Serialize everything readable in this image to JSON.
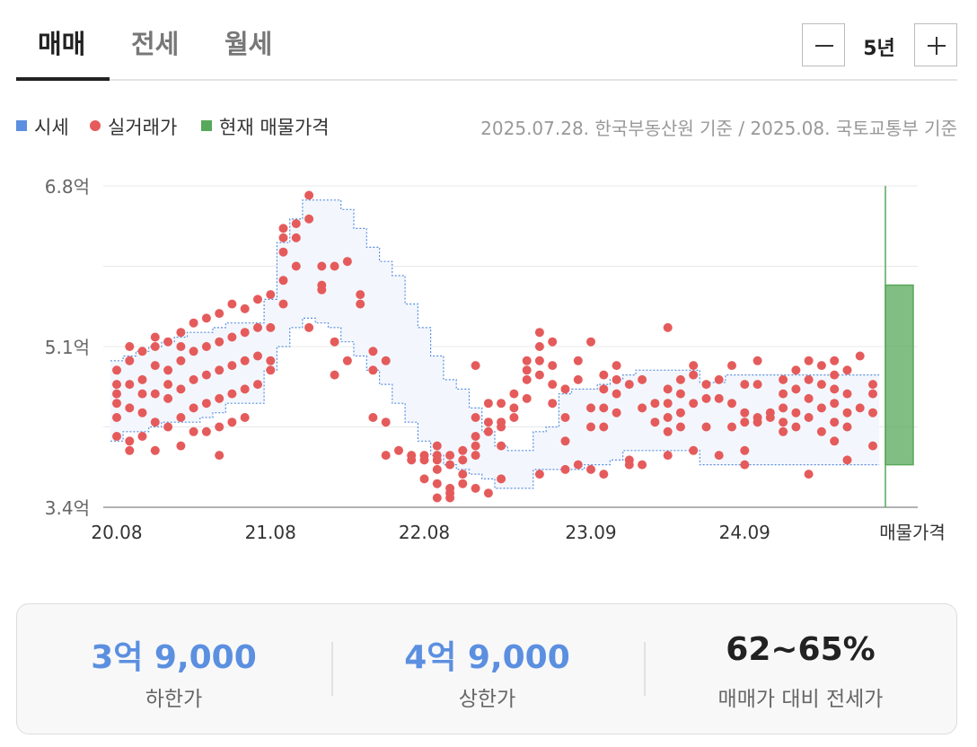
{
  "tabs": [
    {
      "label": "매매",
      "active": true
    },
    {
      "label": "전세",
      "active": false
    },
    {
      "label": "월세",
      "active": false
    }
  ],
  "period": {
    "label": "5년",
    "minus_icon": "minus-icon",
    "plus_icon": "plus-icon"
  },
  "legend": [
    {
      "label": "시세",
      "color": "#5b8fe0",
      "shape": "square"
    },
    {
      "label": "실거래가",
      "color": "#e55b5b",
      "shape": "circle"
    },
    {
      "label": "현재 매물가격",
      "color": "#57a85a",
      "shape": "square"
    }
  ],
  "source": "2025.07.28. 한국부동산원 기준 / 2025.08. 국토교통부 기준",
  "chart_data": {
    "type": "scatter",
    "y_unit": "억",
    "ylim": [
      3.4,
      6.8
    ],
    "y_ticks": [
      {
        "value": 3.4,
        "label": "3.4억"
      },
      {
        "value": 5.1,
        "label": "5.1억"
      },
      {
        "value": 6.8,
        "label": "6.8억"
      }
    ],
    "x_tick_labels": [
      "20.08",
      "21.08",
      "22.08",
      "23.09",
      "24.09",
      "매물가격"
    ],
    "grid": true,
    "band": {
      "name": "시세",
      "color": "#5b8fe0",
      "fill": "#f3f7fd",
      "x": [
        "20.08",
        "20.09",
        "20.10",
        "20.11",
        "20.12",
        "21.01",
        "21.02",
        "21.03",
        "21.04",
        "21.05",
        "21.06",
        "21.07",
        "21.08",
        "21.09",
        "21.10",
        "21.11",
        "21.12",
        "22.01",
        "22.02",
        "22.03",
        "22.04",
        "22.05",
        "22.06",
        "22.07",
        "22.08",
        "22.09",
        "22.10",
        "22.11",
        "22.12",
        "23.01",
        "23.02",
        "23.03",
        "23.04",
        "23.05",
        "23.06",
        "23.07",
        "23.08",
        "23.09",
        "23.10",
        "23.11",
        "23.12",
        "24.01",
        "24.02",
        "24.03",
        "24.04",
        "24.05",
        "24.06",
        "24.07",
        "24.08",
        "24.09",
        "24.10",
        "24.11",
        "24.12",
        "25.01",
        "25.02",
        "25.03",
        "25.04",
        "25.05",
        "25.06",
        "25.07"
      ],
      "upper": [
        4.95,
        5.0,
        5.05,
        5.1,
        5.15,
        5.2,
        5.25,
        5.25,
        5.3,
        5.35,
        5.35,
        5.35,
        5.6,
        6.2,
        6.45,
        6.65,
        6.65,
        6.65,
        6.55,
        6.35,
        6.15,
        6.0,
        5.85,
        5.55,
        5.3,
        5.0,
        4.75,
        4.65,
        4.45,
        4.2,
        4.05,
        4.0,
        4.0,
        4.2,
        4.25,
        4.6,
        4.65,
        4.65,
        4.7,
        4.75,
        4.8,
        4.85,
        4.85,
        4.85,
        4.85,
        4.85,
        4.72,
        4.72,
        4.8,
        4.8,
        4.8,
        4.8,
        4.8,
        4.8,
        4.8,
        4.8,
        4.8,
        4.8,
        4.8,
        4.8
      ],
      "lower": [
        4.1,
        4.2,
        4.2,
        4.25,
        4.3,
        4.3,
        4.3,
        4.35,
        4.4,
        4.5,
        4.5,
        4.5,
        4.85,
        5.1,
        5.3,
        5.4,
        5.35,
        5.3,
        5.15,
        5.0,
        4.85,
        4.7,
        4.5,
        4.3,
        4.1,
        3.95,
        3.85,
        3.8,
        3.75,
        3.7,
        3.6,
        3.6,
        3.6,
        3.8,
        3.8,
        3.8,
        3.8,
        3.85,
        3.85,
        3.9,
        4.0,
        4.0,
        4.0,
        4.0,
        4.0,
        4.0,
        3.85,
        3.85,
        3.85,
        3.85,
        3.85,
        3.85,
        3.85,
        3.85,
        3.85,
        3.85,
        3.85,
        3.85,
        3.85,
        3.85
      ]
    },
    "current_listing": {
      "name": "현재 매물가격",
      "color": "#57a85a",
      "low": 3.85,
      "high": 5.75
    },
    "series": [
      {
        "name": "실거래가",
        "color": "#e55b5b",
        "points": [
          [
            "20.08",
            4.85
          ],
          [
            "20.08",
            4.6
          ],
          [
            "20.08",
            4.35
          ],
          [
            "20.08",
            4.15
          ],
          [
            "20.08",
            4.7
          ],
          [
            "20.08",
            4.5
          ],
          [
            "20.09",
            4.95
          ],
          [
            "20.09",
            4.45
          ],
          [
            "20.09",
            4.1
          ],
          [
            "20.09",
            5.1
          ],
          [
            "20.09",
            4.7
          ],
          [
            "20.09",
            4.0
          ],
          [
            "20.10",
            4.75
          ],
          [
            "20.10",
            4.4
          ],
          [
            "20.10",
            5.05
          ],
          [
            "20.10",
            4.15
          ],
          [
            "20.10",
            4.6
          ],
          [
            "20.11",
            5.2
          ],
          [
            "20.11",
            4.9
          ],
          [
            "20.11",
            4.6
          ],
          [
            "20.11",
            4.3
          ],
          [
            "20.11",
            4.0
          ],
          [
            "20.11",
            5.1
          ],
          [
            "20.12",
            5.15
          ],
          [
            "20.12",
            4.85
          ],
          [
            "20.12",
            4.55
          ],
          [
            "20.12",
            4.25
          ],
          [
            "20.12",
            4.7
          ],
          [
            "21.01",
            5.25
          ],
          [
            "21.01",
            4.95
          ],
          [
            "21.01",
            4.65
          ],
          [
            "21.01",
            4.35
          ],
          [
            "21.01",
            4.05
          ],
          [
            "21.01",
            5.1
          ],
          [
            "21.02",
            5.35
          ],
          [
            "21.02",
            5.05
          ],
          [
            "21.02",
            4.75
          ],
          [
            "21.02",
            4.45
          ],
          [
            "21.02",
            4.2
          ],
          [
            "21.03",
            5.4
          ],
          [
            "21.03",
            5.1
          ],
          [
            "21.03",
            4.8
          ],
          [
            "21.03",
            4.5
          ],
          [
            "21.03",
            4.2
          ],
          [
            "21.04",
            5.45
          ],
          [
            "21.04",
            5.15
          ],
          [
            "21.04",
            4.85
          ],
          [
            "21.04",
            4.55
          ],
          [
            "21.04",
            4.25
          ],
          [
            "21.04",
            3.95
          ],
          [
            "21.05",
            5.55
          ],
          [
            "21.05",
            5.2
          ],
          [
            "21.05",
            4.9
          ],
          [
            "21.05",
            4.6
          ],
          [
            "21.05",
            4.3
          ],
          [
            "21.06",
            5.5
          ],
          [
            "21.06",
            5.25
          ],
          [
            "21.06",
            4.95
          ],
          [
            "21.06",
            4.65
          ],
          [
            "21.06",
            4.35
          ],
          [
            "21.07",
            5.6
          ],
          [
            "21.07",
            5.3
          ],
          [
            "21.07",
            5.0
          ],
          [
            "21.07",
            4.7
          ],
          [
            "21.08",
            5.65
          ],
          [
            "21.08",
            5.3
          ],
          [
            "21.08",
            4.85
          ],
          [
            "21.08",
            4.95
          ],
          [
            "21.09",
            6.1
          ],
          [
            "21.09",
            6.25
          ],
          [
            "21.09",
            6.35
          ],
          [
            "21.09",
            5.8
          ],
          [
            "21.09",
            5.55
          ],
          [
            "21.10",
            6.4
          ],
          [
            "21.10",
            6.25
          ],
          [
            "21.10",
            5.95
          ],
          [
            "21.11",
            6.45
          ],
          [
            "21.11",
            6.7
          ],
          [
            "21.11",
            5.3
          ],
          [
            "21.12",
            5.75
          ],
          [
            "21.12",
            5.95
          ],
          [
            "21.12",
            5.7
          ],
          [
            "22.01",
            5.95
          ],
          [
            "22.01",
            5.15
          ],
          [
            "22.01",
            4.8
          ],
          [
            "22.02",
            4.95
          ],
          [
            "22.02",
            6.0
          ],
          [
            "22.03",
            5.65
          ],
          [
            "22.03",
            5.55
          ],
          [
            "22.04",
            5.05
          ],
          [
            "22.04",
            4.85
          ],
          [
            "22.04",
            4.35
          ],
          [
            "22.05",
            4.95
          ],
          [
            "22.05",
            4.3
          ],
          [
            "22.05",
            3.95
          ],
          [
            "22.06",
            4.0
          ],
          [
            "22.07",
            3.95
          ],
          [
            "22.07",
            3.9
          ],
          [
            "22.08",
            3.9
          ],
          [
            "22.08",
            3.95
          ],
          [
            "22.08",
            3.7
          ],
          [
            "22.09",
            3.9
          ],
          [
            "22.09",
            3.95
          ],
          [
            "22.09",
            3.8
          ],
          [
            "22.09",
            3.5
          ],
          [
            "22.09",
            3.65
          ],
          [
            "22.09",
            4.05
          ],
          [
            "22.10",
            3.85
          ],
          [
            "22.10",
            3.95
          ],
          [
            "22.10",
            3.6
          ],
          [
            "22.10",
            3.55
          ],
          [
            "22.10",
            3.5
          ],
          [
            "22.11",
            4.0
          ],
          [
            "22.11",
            3.9
          ],
          [
            "22.11",
            3.65
          ],
          [
            "22.11",
            3.75
          ],
          [
            "22.12",
            4.35
          ],
          [
            "22.12",
            4.15
          ],
          [
            "22.12",
            4.05
          ],
          [
            "22.12",
            3.95
          ],
          [
            "22.12",
            4.9
          ],
          [
            "22.12",
            3.6
          ],
          [
            "23.01",
            4.5
          ],
          [
            "23.01",
            4.3
          ],
          [
            "23.01",
            4.2
          ],
          [
            "23.01",
            3.55
          ],
          [
            "23.02",
            4.5
          ],
          [
            "23.02",
            4.25
          ],
          [
            "23.02",
            4.05
          ],
          [
            "23.02",
            4.3
          ],
          [
            "23.02",
            3.7
          ],
          [
            "23.03",
            4.6
          ],
          [
            "23.03",
            4.45
          ],
          [
            "23.03",
            4.35
          ],
          [
            "23.04",
            4.95
          ],
          [
            "23.04",
            4.85
          ],
          [
            "23.04",
            4.75
          ],
          [
            "23.04",
            4.55
          ],
          [
            "23.05",
            5.25
          ],
          [
            "23.05",
            5.1
          ],
          [
            "23.05",
            4.95
          ],
          [
            "23.05",
            4.8
          ],
          [
            "23.05",
            3.75
          ],
          [
            "23.06",
            4.9
          ],
          [
            "23.06",
            4.7
          ],
          [
            "23.06",
            4.5
          ],
          [
            "23.06",
            5.15
          ],
          [
            "23.07",
            4.65
          ],
          [
            "23.07",
            4.35
          ],
          [
            "23.07",
            4.1
          ],
          [
            "23.07",
            3.8
          ],
          [
            "23.08",
            4.95
          ],
          [
            "23.08",
            4.75
          ],
          [
            "23.08",
            3.85
          ],
          [
            "23.09",
            5.15
          ],
          [
            "23.09",
            4.45
          ],
          [
            "23.09",
            4.25
          ],
          [
            "23.09",
            3.8
          ],
          [
            "23.10",
            4.8
          ],
          [
            "23.10",
            4.65
          ],
          [
            "23.10",
            4.45
          ],
          [
            "23.10",
            4.25
          ],
          [
            "23.10",
            3.75
          ],
          [
            "23.11",
            4.9
          ],
          [
            "23.11",
            4.75
          ],
          [
            "23.11",
            4.6
          ],
          [
            "23.11",
            4.4
          ],
          [
            "23.12",
            4.7
          ],
          [
            "23.12",
            3.85
          ],
          [
            "23.12",
            3.9
          ],
          [
            "24.01",
            4.75
          ],
          [
            "24.01",
            4.45
          ],
          [
            "24.01",
            3.85
          ],
          [
            "24.02",
            4.5
          ],
          [
            "24.02",
            4.3
          ],
          [
            "24.03",
            4.65
          ],
          [
            "24.03",
            4.5
          ],
          [
            "24.03",
            4.35
          ],
          [
            "24.03",
            4.2
          ],
          [
            "24.03",
            5.3
          ],
          [
            "24.03",
            3.95
          ],
          [
            "24.04",
            4.75
          ],
          [
            "24.04",
            4.6
          ],
          [
            "24.04",
            4.4
          ],
          [
            "24.04",
            4.25
          ],
          [
            "24.05",
            4.9
          ],
          [
            "24.05",
            4.8
          ],
          [
            "24.05",
            4.5
          ],
          [
            "24.05",
            4.0
          ],
          [
            "24.06",
            4.7
          ],
          [
            "24.06",
            4.55
          ],
          [
            "24.06",
            4.25
          ],
          [
            "24.07",
            4.75
          ],
          [
            "24.07",
            4.55
          ],
          [
            "24.07",
            3.95
          ],
          [
            "24.08",
            4.9
          ],
          [
            "24.08",
            4.5
          ],
          [
            "24.08",
            4.25
          ],
          [
            "24.09",
            4.7
          ],
          [
            "24.09",
            4.4
          ],
          [
            "24.09",
            4.3
          ],
          [
            "24.09",
            4.0
          ],
          [
            "24.09",
            3.85
          ],
          [
            "24.10",
            4.95
          ],
          [
            "24.10",
            4.7
          ],
          [
            "24.10",
            4.35
          ],
          [
            "24.10",
            4.3
          ],
          [
            "24.11",
            4.4
          ],
          [
            "24.11",
            4.35
          ],
          [
            "24.12",
            4.75
          ],
          [
            "24.12",
            4.6
          ],
          [
            "24.12",
            4.45
          ],
          [
            "24.12",
            4.3
          ],
          [
            "24.12",
            4.2
          ],
          [
            "25.01",
            4.85
          ],
          [
            "25.01",
            4.65
          ],
          [
            "25.01",
            4.4
          ],
          [
            "25.01",
            4.25
          ],
          [
            "25.02",
            4.95
          ],
          [
            "25.02",
            4.75
          ],
          [
            "25.02",
            4.55
          ],
          [
            "25.02",
            4.35
          ],
          [
            "25.02",
            3.75
          ],
          [
            "25.03",
            4.9
          ],
          [
            "25.03",
            4.7
          ],
          [
            "25.03",
            4.45
          ],
          [
            "25.03",
            4.2
          ],
          [
            "25.04",
            4.95
          ],
          [
            "25.04",
            4.8
          ],
          [
            "25.04",
            4.65
          ],
          [
            "25.04",
            4.5
          ],
          [
            "25.04",
            4.3
          ],
          [
            "25.04",
            4.1
          ],
          [
            "25.05",
            4.85
          ],
          [
            "25.05",
            4.6
          ],
          [
            "25.05",
            4.4
          ],
          [
            "25.05",
            4.25
          ],
          [
            "25.05",
            3.9
          ],
          [
            "25.06",
            5.0
          ],
          [
            "25.06",
            4.45
          ],
          [
            "25.07",
            4.7
          ],
          [
            "25.07",
            4.6
          ],
          [
            "25.07",
            4.4
          ],
          [
            "25.07",
            4.05
          ]
        ]
      }
    ]
  },
  "summary": [
    {
      "value": "3억 9,000",
      "label": "하한가",
      "color": "#5b8fe0"
    },
    {
      "value": "4억 9,000",
      "label": "상한가",
      "color": "#5b8fe0"
    },
    {
      "value": "62~65%",
      "label": "매매가 대비 전세가",
      "color": "#222222"
    }
  ]
}
